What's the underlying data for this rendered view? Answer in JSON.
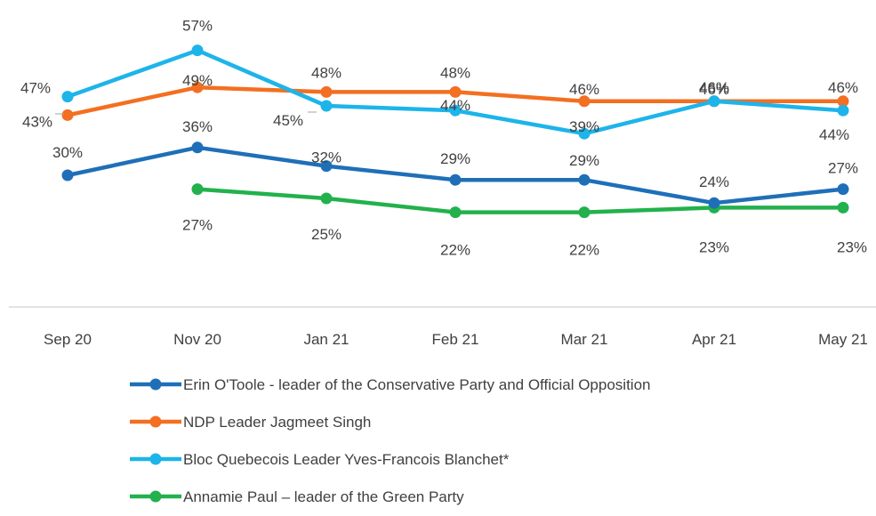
{
  "chart_data": {
    "type": "line",
    "title": "",
    "xlabel": "",
    "ylabel": "",
    "categories": [
      "Sep 20",
      "Nov 20",
      "Jan 21",
      "Feb 21",
      "Mar 21",
      "Apr 21",
      "May 21"
    ],
    "ylim": [
      0,
      80
    ],
    "grid": false,
    "legend_position": "bottom",
    "series": [
      {
        "name": "Erin O'Toole - leader of the Conservative Party and Official Opposition",
        "color": "#1F6FB8",
        "values": [
          30,
          36,
          32,
          29,
          29,
          24,
          27
        ],
        "labels": [
          "30%",
          "36%",
          "32%",
          "29%",
          "29%",
          "24%",
          "27%"
        ]
      },
      {
        "name": "NDP Leader Jagmeet Singh",
        "color": "#F36F21",
        "values": [
          43,
          49,
          48,
          48,
          46,
          46,
          46
        ],
        "labels": [
          "43%",
          "49%",
          "48%",
          "48%",
          "46%",
          "46%",
          "46%"
        ]
      },
      {
        "name": "Bloc Quebecois Leader Yves-Francois Blanchet*",
        "color": "#1DB4EA",
        "values": [
          47,
          57,
          45,
          44,
          39,
          46,
          44
        ],
        "labels": [
          "47%",
          "57%",
          "45%",
          "44%",
          "39%",
          "46%",
          "44%"
        ]
      },
      {
        "name": "Annamie Paul – leader of the Green Party",
        "color": "#22B14C",
        "values": [
          null,
          27,
          25,
          22,
          22,
          23,
          23
        ],
        "labels": [
          "",
          "27%",
          "25%",
          "22%",
          "22%",
          "23%",
          "23%"
        ]
      }
    ]
  }
}
